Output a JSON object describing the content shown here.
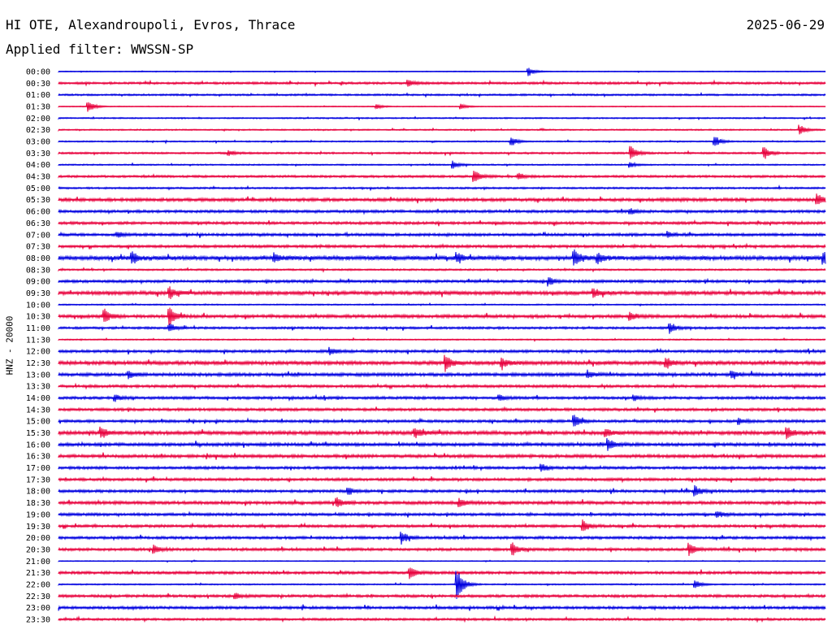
{
  "header": {
    "title": "HI OTE, Alexandroupoli, Evros, Thrace",
    "date": "2025-06-29",
    "filter": "Applied filter: WWSSN-SP"
  },
  "chart_data": {
    "type": "line",
    "title": "HI OTE, Alexandroupoli, Evros, Thrace",
    "subtitle": "Applied filter: WWSSN-SP",
    "date": "2025-06-29",
    "ylabel": "HNZ - 20000",
    "xlabel": "",
    "grid": false,
    "legend": "none",
    "series_colors": [
      "#0000e0",
      "#e8003c"
    ],
    "time_labels": [
      "00:00",
      "00:30",
      "01:00",
      "01:30",
      "02:00",
      "02:30",
      "03:00",
      "03:30",
      "04:00",
      "04:30",
      "05:00",
      "05:30",
      "06:00",
      "06:30",
      "07:00",
      "07:30",
      "08:00",
      "08:30",
      "09:00",
      "09:30",
      "10:00",
      "10:30",
      "11:00",
      "11:30",
      "12:00",
      "12:30",
      "13:00",
      "13:30",
      "14:00",
      "14:30",
      "15:00",
      "15:30",
      "16:00",
      "16:30",
      "17:00",
      "17:30",
      "18:00",
      "18:30",
      "19:00",
      "19:30",
      "20:00",
      "20:30",
      "21:00",
      "21:30",
      "22:00",
      "22:30",
      "23:00",
      "23:30"
    ],
    "trace_noise": [
      0.1,
      0.25,
      0.2,
      0.1,
      0.15,
      0.15,
      0.15,
      0.2,
      0.15,
      0.25,
      0.2,
      0.35,
      0.3,
      0.3,
      0.3,
      0.3,
      0.45,
      0.2,
      0.3,
      0.4,
      0.15,
      0.35,
      0.25,
      0.15,
      0.3,
      0.4,
      0.35,
      0.3,
      0.3,
      0.3,
      0.3,
      0.4,
      0.35,
      0.35,
      0.3,
      0.3,
      0.3,
      0.35,
      0.3,
      0.3,
      0.3,
      0.3,
      0.1,
      0.3,
      0.15,
      0.3,
      0.3,
      0.25
    ],
    "events": [
      {
        "trace": "00:00",
        "time_frac": 0.613,
        "amp": 1.0
      },
      {
        "trace": "00:30",
        "time_frac": 0.456,
        "amp": 0.7
      },
      {
        "trace": "01:30",
        "time_frac": 0.039,
        "amp": 1.4
      },
      {
        "trace": "01:30",
        "time_frac": 0.415,
        "amp": 0.5
      },
      {
        "trace": "01:30",
        "time_frac": 0.525,
        "amp": 0.6
      },
      {
        "trace": "02:30",
        "time_frac": 0.967,
        "amp": 1.1
      },
      {
        "trace": "03:00",
        "time_frac": 0.59,
        "amp": 1.0
      },
      {
        "trace": "03:00",
        "time_frac": 0.855,
        "amp": 1.3
      },
      {
        "trace": "03:30",
        "time_frac": 0.222,
        "amp": 0.6
      },
      {
        "trace": "03:30",
        "time_frac": 0.746,
        "amp": 1.6
      },
      {
        "trace": "03:30",
        "time_frac": 0.92,
        "amp": 1.4
      },
      {
        "trace": "04:00",
        "time_frac": 0.514,
        "amp": 0.9
      },
      {
        "trace": "04:00",
        "time_frac": 0.745,
        "amp": 0.6
      },
      {
        "trace": "04:30",
        "time_frac": 0.542,
        "amp": 1.5
      },
      {
        "trace": "04:30",
        "time_frac": 0.6,
        "amp": 0.8
      },
      {
        "trace": "05:30",
        "time_frac": 0.989,
        "amp": 1.2
      },
      {
        "trace": "06:00",
        "time_frac": 0.745,
        "amp": 0.6
      },
      {
        "trace": "07:00",
        "time_frac": 0.077,
        "amp": 0.6
      },
      {
        "trace": "07:00",
        "time_frac": 0.795,
        "amp": 0.6
      },
      {
        "trace": "08:00",
        "time_frac": 0.096,
        "amp": 1.3
      },
      {
        "trace": "08:00",
        "time_frac": 0.281,
        "amp": 0.9
      },
      {
        "trace": "08:00",
        "time_frac": 0.52,
        "amp": 1.0
      },
      {
        "trace": "08:00",
        "time_frac": 0.672,
        "amp": 1.8
      },
      {
        "trace": "08:00",
        "time_frac": 0.703,
        "amp": 1.2
      },
      {
        "trace": "08:00",
        "time_frac": 0.997,
        "amp": 1.4
      },
      {
        "trace": "09:00",
        "time_frac": 0.639,
        "amp": 1.0
      },
      {
        "trace": "09:30",
        "time_frac": 0.145,
        "amp": 1.2
      },
      {
        "trace": "09:30",
        "time_frac": 0.697,
        "amp": 1.1
      },
      {
        "trace": "10:30",
        "time_frac": 0.06,
        "amp": 1.5
      },
      {
        "trace": "10:30",
        "time_frac": 0.145,
        "amp": 1.8
      },
      {
        "trace": "10:30",
        "time_frac": 0.745,
        "amp": 0.9
      },
      {
        "trace": "11:00",
        "time_frac": 0.145,
        "amp": 0.9
      },
      {
        "trace": "11:00",
        "time_frac": 0.797,
        "amp": 1.3
      },
      {
        "trace": "12:00",
        "time_frac": 0.354,
        "amp": 0.7
      },
      {
        "trace": "12:30",
        "time_frac": 0.505,
        "amp": 1.9
      },
      {
        "trace": "12:30",
        "time_frac": 0.578,
        "amp": 1.1
      },
      {
        "trace": "12:30",
        "time_frac": 0.792,
        "amp": 1.3
      },
      {
        "trace": "13:00",
        "time_frac": 0.091,
        "amp": 0.8
      },
      {
        "trace": "13:00",
        "time_frac": 0.69,
        "amp": 0.8
      },
      {
        "trace": "13:00",
        "time_frac": 0.878,
        "amp": 0.7
      },
      {
        "trace": "14:00",
        "time_frac": 0.074,
        "amp": 0.7
      },
      {
        "trace": "14:00",
        "time_frac": 0.575,
        "amp": 0.6
      },
      {
        "trace": "14:00",
        "time_frac": 0.75,
        "amp": 0.6
      },
      {
        "trace": "15:00",
        "time_frac": 0.672,
        "amp": 1.6
      },
      {
        "trace": "15:00",
        "time_frac": 0.887,
        "amp": 0.7
      },
      {
        "trace": "15:30",
        "time_frac": 0.055,
        "amp": 1.4
      },
      {
        "trace": "15:30",
        "time_frac": 0.464,
        "amp": 1.2
      },
      {
        "trace": "15:30",
        "time_frac": 0.713,
        "amp": 0.8
      },
      {
        "trace": "15:30",
        "time_frac": 0.95,
        "amp": 1.2
      },
      {
        "trace": "16:00",
        "time_frac": 0.716,
        "amp": 1.5
      },
      {
        "trace": "17:00",
        "time_frac": 0.63,
        "amp": 0.8
      },
      {
        "trace": "18:00",
        "time_frac": 0.377,
        "amp": 0.9
      },
      {
        "trace": "18:00",
        "time_frac": 0.83,
        "amp": 1.2
      },
      {
        "trace": "18:30",
        "time_frac": 0.363,
        "amp": 1.0
      },
      {
        "trace": "18:30",
        "time_frac": 0.523,
        "amp": 0.9
      },
      {
        "trace": "19:00",
        "time_frac": 0.858,
        "amp": 0.8
      },
      {
        "trace": "19:30",
        "time_frac": 0.684,
        "amp": 1.3
      },
      {
        "trace": "20:00",
        "time_frac": 0.447,
        "amp": 1.3
      },
      {
        "trace": "20:30",
        "time_frac": 0.124,
        "amp": 0.9
      },
      {
        "trace": "20:30",
        "time_frac": 0.592,
        "amp": 1.3
      },
      {
        "trace": "20:30",
        "time_frac": 0.822,
        "amp": 1.4
      },
      {
        "trace": "21:30",
        "time_frac": 0.458,
        "amp": 1.4
      },
      {
        "trace": "22:00",
        "time_frac": 0.52,
        "amp": 3.8
      },
      {
        "trace": "22:00",
        "time_frac": 0.83,
        "amp": 0.9
      },
      {
        "trace": "22:30",
        "time_frac": 0.23,
        "amp": 0.6
      }
    ]
  }
}
